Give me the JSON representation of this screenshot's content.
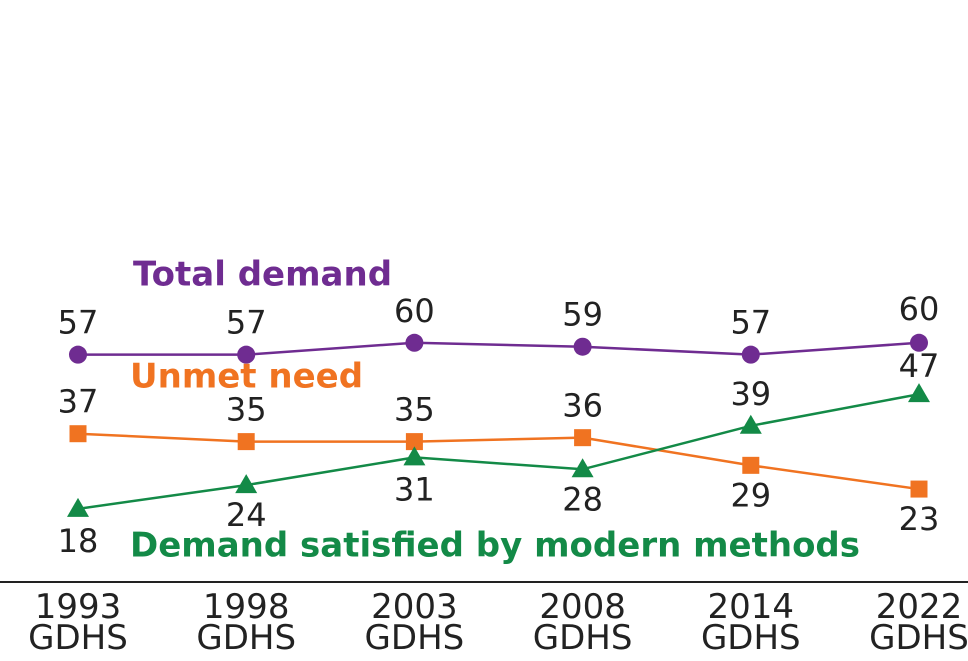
{
  "chart_data": {
    "type": "line",
    "categories": [
      "1993 GDHS",
      "1998 GDHS",
      "2003 GDHS",
      "2008 GDHS",
      "2014 GDHS",
      "2022 GDHS"
    ],
    "series": [
      {
        "name": "Total demand",
        "color": "#6f2c91",
        "marker": "circle",
        "values": [
          57,
          57,
          60,
          59,
          57,
          60
        ]
      },
      {
        "name": "Unmet need",
        "color": "#f07321",
        "marker": "square",
        "values": [
          37,
          35,
          35,
          36,
          29,
          23
        ]
      },
      {
        "name": "Demand satisfied by modern methods",
        "color": "#138a47",
        "marker": "triangle",
        "values": [
          18,
          24,
          31,
          28,
          39,
          47
        ]
      }
    ],
    "ylim": [
      0,
      65
    ]
  }
}
